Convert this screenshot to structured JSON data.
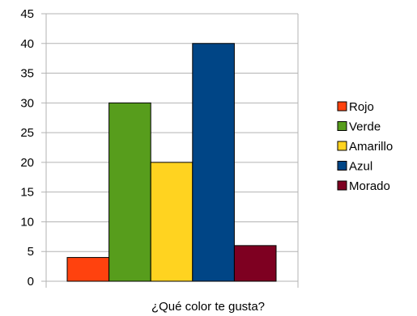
{
  "chart_data": {
    "type": "bar",
    "title": "",
    "xlabel": "¿Qué color te gusta?",
    "ylabel": "",
    "ylim": [
      0,
      45
    ],
    "ytick_step": 5,
    "yticks": [
      "0",
      "5",
      "10",
      "15",
      "20",
      "25",
      "30",
      "35",
      "40",
      "45"
    ],
    "grid": "horizontal",
    "legend_position": "right",
    "categories": [
      ""
    ],
    "series": [
      {
        "name": "Rojo",
        "values": [
          4
        ],
        "color": "#ff420e"
      },
      {
        "name": "Verde",
        "values": [
          30
        ],
        "color": "#579d1c"
      },
      {
        "name": "Amarillo",
        "values": [
          20
        ],
        "color": "#ffd320"
      },
      {
        "name": "Azul",
        "values": [
          40
        ],
        "color": "#004586"
      },
      {
        "name": "Morado",
        "values": [
          6
        ],
        "color": "#7e0021"
      }
    ]
  }
}
